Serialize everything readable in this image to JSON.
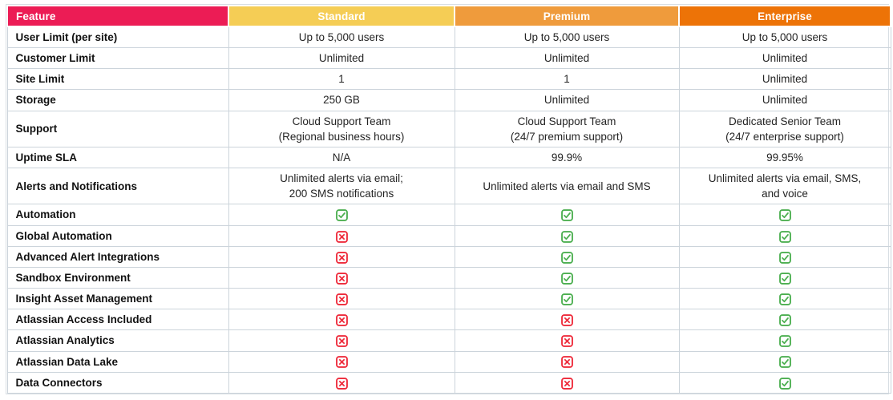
{
  "table": {
    "columns": [
      {
        "id": "feature",
        "label": "Feature",
        "header_color": "#EC1C55",
        "align": "left"
      },
      {
        "id": "standard",
        "label": "Standard",
        "header_color": "#F5CD55",
        "align": "center"
      },
      {
        "id": "premium",
        "label": "Premium",
        "header_color": "#EF9B3C",
        "align": "center"
      },
      {
        "id": "enterprise",
        "label": "Enterprise",
        "header_color": "#ED7307",
        "align": "center"
      }
    ],
    "header_text_color": "#FFFFFF",
    "grid_color": "#CCD4DB",
    "check_color": "#4CAF50",
    "cross_color": "#EE2B3B",
    "icon_legend": {
      "check": "check-icon",
      "cross": "cross-icon"
    },
    "rows": [
      {
        "feature": "User Limit (per site)",
        "standard": "Up to 5,000 users",
        "premium": "Up to 5,000 users",
        "enterprise": "Up to 5,000 users"
      },
      {
        "feature": "Customer Limit",
        "standard": "Unlimited",
        "premium": "Unlimited",
        "enterprise": "Unlimited"
      },
      {
        "feature": "Site Limit",
        "standard": "1",
        "premium": "1",
        "enterprise": "Unlimited"
      },
      {
        "feature": "Storage",
        "standard": "250 GB",
        "premium": "Unlimited",
        "enterprise": "Unlimited"
      },
      {
        "feature": "Support",
        "standard": "Cloud Support Team\n(Regional business hours)",
        "premium": "Cloud Support Team\n(24/7 premium support)",
        "enterprise": "Dedicated Senior Team\n(24/7 enterprise support)"
      },
      {
        "feature": "Uptime SLA",
        "standard": "N/A",
        "premium": "99.9%",
        "enterprise": "99.95%"
      },
      {
        "feature": "Alerts and Notifications",
        "standard": "Unlimited alerts via email;\n200 SMS notifications",
        "premium": "Unlimited alerts via email and SMS",
        "enterprise": "Unlimited alerts via email, SMS,\nand voice"
      },
      {
        "feature": "Automation",
        "standard": "check",
        "premium": "check",
        "enterprise": "check"
      },
      {
        "feature": "Global Automation",
        "standard": "cross",
        "premium": "check",
        "enterprise": "check"
      },
      {
        "feature": "Advanced Alert Integrations",
        "standard": "cross",
        "premium": "check",
        "enterprise": "check"
      },
      {
        "feature": "Sandbox Environment",
        "standard": "cross",
        "premium": "check",
        "enterprise": "check"
      },
      {
        "feature": "Insight Asset Management",
        "standard": "cross",
        "premium": "check",
        "enterprise": "check"
      },
      {
        "feature": "Atlassian Access Included",
        "standard": "cross",
        "premium": "cross",
        "enterprise": "check"
      },
      {
        "feature": "Atlassian Analytics",
        "standard": "cross",
        "premium": "cross",
        "enterprise": "check"
      },
      {
        "feature": "Atlassian Data Lake",
        "standard": "cross",
        "premium": "cross",
        "enterprise": "check"
      },
      {
        "feature": "Data Connectors",
        "standard": "cross",
        "premium": "cross",
        "enterprise": "check"
      }
    ]
  }
}
